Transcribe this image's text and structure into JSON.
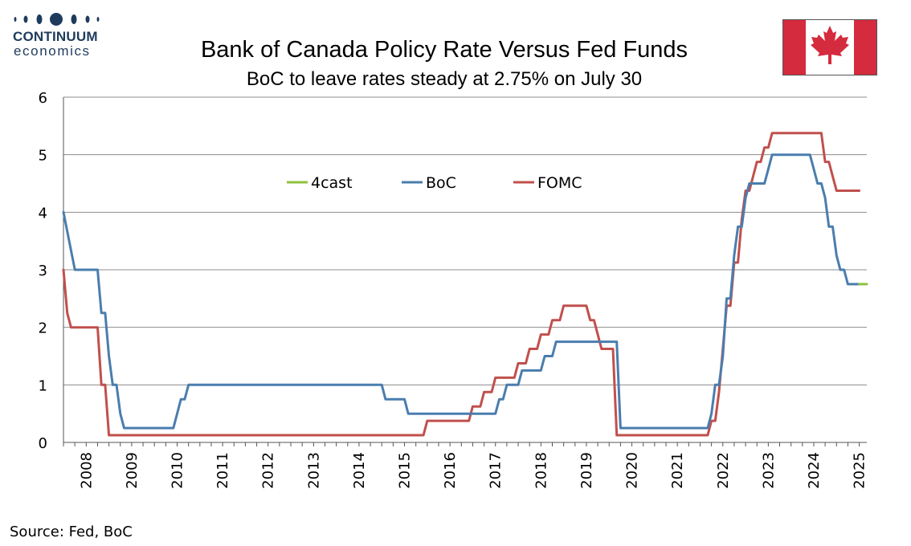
{
  "branding": {
    "logo_word": "CONTINUUM",
    "logo_sub": "economics",
    "flag_icon": "canada-flag-icon",
    "flag_red": "#d52b3e"
  },
  "source": "Source: Fed, BoC",
  "chart_data": {
    "type": "line",
    "title": "Bank of Canada Policy Rate Versus Fed Funds",
    "subtitle": "BoC to leave rates steady at 2.75% on July 30",
    "xlabel": "",
    "ylabel": "",
    "ylim": [
      0,
      6
    ],
    "yticks": [
      0,
      1,
      2,
      3,
      4,
      5,
      6
    ],
    "xlim": [
      "2008-01",
      "2025-09"
    ],
    "xticks": [
      "2008",
      "2009",
      "2010",
      "2011",
      "2012",
      "2013",
      "2014",
      "2015",
      "2016",
      "2017",
      "2018",
      "2019",
      "2020",
      "2021",
      "2022",
      "2023",
      "2024",
      "2025"
    ],
    "grid": true,
    "legend_position": "top-left",
    "series": [
      {
        "name": "4cast",
        "color": "#8fc13f",
        "points": [
          [
            "2025-07",
            2.75
          ],
          [
            "2025-09",
            2.75
          ]
        ]
      },
      {
        "name": "BoC",
        "color": "#4a7dae",
        "points": [
          [
            "2008-01",
            4.0
          ],
          [
            "2008-04",
            3.0
          ],
          [
            "2008-10",
            3.0
          ],
          [
            "2008-11",
            2.25
          ],
          [
            "2008-12",
            2.25
          ],
          [
            "2009-01",
            1.5
          ],
          [
            "2009-02",
            1.0
          ],
          [
            "2009-03",
            1.0
          ],
          [
            "2009-04",
            0.5
          ],
          [
            "2009-05",
            0.25
          ],
          [
            "2010-06",
            0.25
          ],
          [
            "2010-07",
            0.5
          ],
          [
            "2010-08",
            0.75
          ],
          [
            "2010-09",
            0.75
          ],
          [
            "2010-10",
            1.0
          ],
          [
            "2015-01",
            1.0
          ],
          [
            "2015-02",
            0.75
          ],
          [
            "2015-07",
            0.75
          ],
          [
            "2015-08",
            0.5
          ],
          [
            "2017-07",
            0.5
          ],
          [
            "2017-08",
            0.75
          ],
          [
            "2017-09",
            0.75
          ],
          [
            "2017-10",
            1.0
          ],
          [
            "2018-01",
            1.0
          ],
          [
            "2018-02",
            1.25
          ],
          [
            "2018-07",
            1.25
          ],
          [
            "2018-08",
            1.5
          ],
          [
            "2018-10",
            1.5
          ],
          [
            "2018-11",
            1.75
          ],
          [
            "2020-03",
            1.75
          ],
          [
            "2020-04",
            0.25
          ],
          [
            "2022-03",
            0.25
          ],
          [
            "2022-04",
            0.5
          ],
          [
            "2022-05",
            1.0
          ],
          [
            "2022-06",
            1.0
          ],
          [
            "2022-07",
            1.5
          ],
          [
            "2022-08",
            2.5
          ],
          [
            "2022-09",
            2.5
          ],
          [
            "2022-10",
            3.25
          ],
          [
            "2022-11",
            3.75
          ],
          [
            "2022-12",
            3.75
          ],
          [
            "2023-01",
            4.25
          ],
          [
            "2023-02",
            4.5
          ],
          [
            "2023-06",
            4.5
          ],
          [
            "2023-07",
            4.75
          ],
          [
            "2023-08",
            5.0
          ],
          [
            "2024-06",
            5.0
          ],
          [
            "2024-07",
            4.75
          ],
          [
            "2024-08",
            4.5
          ],
          [
            "2024-09",
            4.5
          ],
          [
            "2024-10",
            4.25
          ],
          [
            "2024-11",
            3.75
          ],
          [
            "2024-12",
            3.75
          ],
          [
            "2025-01",
            3.25
          ],
          [
            "2025-02",
            3.0
          ],
          [
            "2025-03",
            3.0
          ],
          [
            "2025-04",
            2.75
          ],
          [
            "2025-07",
            2.75
          ]
        ]
      },
      {
        "name": "FOMC",
        "color": "#c0504d",
        "points": [
          [
            "2008-01",
            3.0
          ],
          [
            "2008-02",
            2.25
          ],
          [
            "2008-03",
            2.0
          ],
          [
            "2008-10",
            2.0
          ],
          [
            "2008-11",
            1.0
          ],
          [
            "2008-12",
            1.0
          ],
          [
            "2009-01",
            0.125
          ],
          [
            "2015-12",
            0.125
          ],
          [
            "2016-01",
            0.375
          ],
          [
            "2016-12",
            0.375
          ],
          [
            "2017-01",
            0.625
          ],
          [
            "2017-03",
            0.625
          ],
          [
            "2017-04",
            0.875
          ],
          [
            "2017-06",
            0.875
          ],
          [
            "2017-07",
            1.125
          ],
          [
            "2017-12",
            1.125
          ],
          [
            "2018-01",
            1.375
          ],
          [
            "2018-03",
            1.375
          ],
          [
            "2018-04",
            1.625
          ],
          [
            "2018-06",
            1.625
          ],
          [
            "2018-07",
            1.875
          ],
          [
            "2018-09",
            1.875
          ],
          [
            "2018-10",
            2.125
          ],
          [
            "2018-12",
            2.125
          ],
          [
            "2019-01",
            2.375
          ],
          [
            "2019-07",
            2.375
          ],
          [
            "2019-08",
            2.125
          ],
          [
            "2019-09",
            2.125
          ],
          [
            "2019-10",
            1.875
          ],
          [
            "2019-11",
            1.625
          ],
          [
            "2020-02",
            1.625
          ],
          [
            "2020-03",
            0.125
          ],
          [
            "2022-03",
            0.125
          ],
          [
            "2022-04",
            0.375
          ],
          [
            "2022-05",
            0.375
          ],
          [
            "2022-06",
            0.875
          ],
          [
            "2022-07",
            1.625
          ],
          [
            "2022-08",
            2.375
          ],
          [
            "2022-09",
            2.375
          ],
          [
            "2022-10",
            3.125
          ],
          [
            "2022-11",
            3.125
          ],
          [
            "2022-12",
            3.875
          ],
          [
            "2023-01",
            4.375
          ],
          [
            "2023-02",
            4.375
          ],
          [
            "2023-03",
            4.625
          ],
          [
            "2023-04",
            4.875
          ],
          [
            "2023-05",
            4.875
          ],
          [
            "2023-06",
            5.125
          ],
          [
            "2023-07",
            5.125
          ],
          [
            "2023-08",
            5.375
          ],
          [
            "2024-09",
            5.375
          ],
          [
            "2024-10",
            4.875
          ],
          [
            "2024-11",
            4.875
          ],
          [
            "2024-12",
            4.625
          ],
          [
            "2025-01",
            4.375
          ],
          [
            "2025-07",
            4.375
          ]
        ]
      }
    ]
  }
}
